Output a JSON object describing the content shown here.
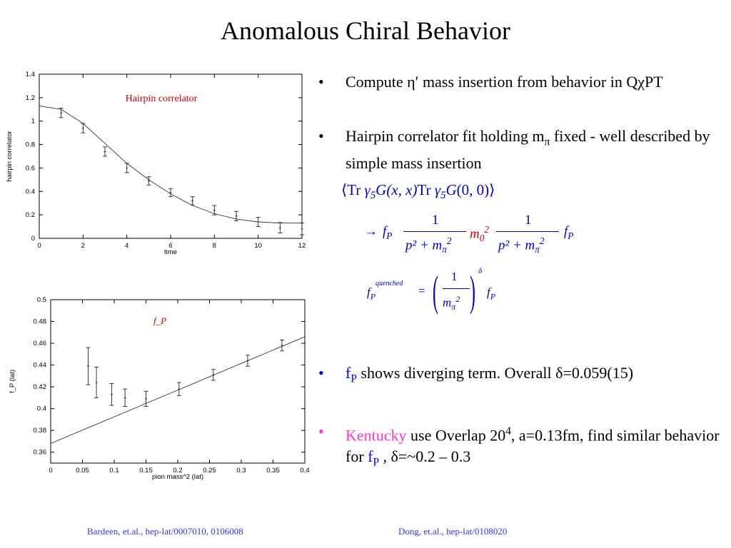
{
  "slide": {
    "title": "Anomalous Chiral Behavior",
    "bullets": [
      {
        "text_a": "Compute ",
        "eta": "η′",
        "text_b": " mass insertion from behavior in Q",
        "chi": "χ",
        "text_c": "PT"
      },
      {
        "text_a": "Hairpin correlator fit holding m",
        "sub": "π",
        "text_b": " fixed - well described by simple mass insertion"
      },
      {
        "fp": "f",
        "fp_sub": "P",
        "text_b": " shows diverging term. Overall ",
        "delta": "δ",
        "text_c": "=0.059(15)"
      },
      {
        "kentucky": "Kentucky",
        "text_b": " use Overlap 20",
        "sup": "4",
        "text_c": ", a=0.13fm, find similar behavior for ",
        "fp": "f",
        "fp_sub": "P",
        "text_d": " , ",
        "delta": "δ",
        "text_e": "=~0.2 – 0.3"
      }
    ],
    "bullet_symbol": "•",
    "equations": {
      "eq1": {
        "lang": "⟨",
        "tr1": "Tr",
        "g1": "γ",
        "g1s": "5",
        "G1": "G",
        "args1": "(x, x)",
        "tr2": "Tr",
        "g2": "γ",
        "g2s": "5",
        "G2": "G",
        "args2": "(0, 0)",
        "rang": "⟩"
      },
      "eq2": {
        "arrow": "→",
        "fp1": "f",
        "fp1s": "P",
        "num": "1",
        "den": "p² + m",
        "den_sub": "π",
        "den_sup": "2",
        "m0": "m",
        "m0s": "0",
        "m0sup": "2",
        "num2": "1",
        "fp2": "f",
        "fp2s": "P"
      },
      "eq3": {
        "fp": "f",
        "fps": "P",
        "fp_sup": "quenched",
        "eq": "=",
        "num": "1",
        "den": "m",
        "den_sub": "π",
        "den_sup": "2",
        "delta": "δ",
        "fp2": "f",
        "fp2s": "P"
      }
    },
    "footer": {
      "left": "Bardeen, et.al., hep-lat/0007010, 0106008",
      "right": "Dong, et.al., hep-lat/0108020"
    },
    "colors": {
      "link": "#3333ff",
      "equation": "#0000cc",
      "highlight": "#ff33cc",
      "chart_label": "#cc0000"
    }
  },
  "chart_data": [
    {
      "type": "scatter",
      "title": "Hairpin correlator",
      "xlabel": "time",
      "ylabel": "hairpin correlator",
      "xlim": [
        0,
        12
      ],
      "ylim": [
        0,
        1.4
      ],
      "xticks": [
        0,
        2,
        4,
        6,
        8,
        10,
        12
      ],
      "yticks": [
        0,
        0.2,
        0.4,
        0.6,
        0.8,
        1,
        1.2,
        1.4
      ],
      "points": [
        {
          "x": 1,
          "y": 1.07,
          "err": 0.04
        },
        {
          "x": 2,
          "y": 0.94,
          "err": 0.04
        },
        {
          "x": 3,
          "y": 0.74,
          "err": 0.04
        },
        {
          "x": 4,
          "y": 0.6,
          "err": 0.04
        },
        {
          "x": 5,
          "y": 0.49,
          "err": 0.035
        },
        {
          "x": 6,
          "y": 0.39,
          "err": 0.035
        },
        {
          "x": 7,
          "y": 0.32,
          "err": 0.035
        },
        {
          "x": 8,
          "y": 0.24,
          "err": 0.04
        },
        {
          "x": 9,
          "y": 0.19,
          "err": 0.04
        },
        {
          "x": 10,
          "y": 0.14,
          "err": 0.04
        },
        {
          "x": 11,
          "y": 0.09,
          "err": 0.045
        },
        {
          "x": 12,
          "y": 0.08,
          "err": 0.05
        }
      ],
      "fit": [
        {
          "x": 0,
          "y": 1.13
        },
        {
          "x": 1,
          "y": 1.1
        },
        {
          "x": 2,
          "y": 0.98
        },
        {
          "x": 3,
          "y": 0.81
        },
        {
          "x": 4,
          "y": 0.64
        },
        {
          "x": 5,
          "y": 0.5
        },
        {
          "x": 6,
          "y": 0.38
        },
        {
          "x": 7,
          "y": 0.28
        },
        {
          "x": 8,
          "y": 0.21
        },
        {
          "x": 9,
          "y": 0.165
        },
        {
          "x": 10,
          "y": 0.14
        },
        {
          "x": 11,
          "y": 0.13
        },
        {
          "x": 12,
          "y": 0.13
        }
      ]
    },
    {
      "type": "scatter",
      "title": "f_P",
      "xlabel": "pion mass^2 (lat)",
      "ylabel": "f_P (lat)",
      "xlim": [
        0,
        0.4
      ],
      "ylim": [
        0.35,
        0.5
      ],
      "xticks": [
        0,
        0.05,
        0.1,
        0.15,
        0.2,
        0.25,
        0.3,
        0.35,
        0.4
      ],
      "yticks": [
        0.36,
        0.38,
        0.4,
        0.42,
        0.44,
        0.46,
        0.48,
        0.5
      ],
      "points": [
        {
          "x": 0.059,
          "y": 0.439,
          "err": 0.017
        },
        {
          "x": 0.072,
          "y": 0.424,
          "err": 0.014
        },
        {
          "x": 0.096,
          "y": 0.413,
          "err": 0.01
        },
        {
          "x": 0.117,
          "y": 0.41,
          "err": 0.008
        },
        {
          "x": 0.15,
          "y": 0.409,
          "err": 0.007
        },
        {
          "x": 0.202,
          "y": 0.418,
          "err": 0.006
        },
        {
          "x": 0.256,
          "y": 0.431,
          "err": 0.005
        },
        {
          "x": 0.31,
          "y": 0.444,
          "err": 0.005
        },
        {
          "x": 0.364,
          "y": 0.458,
          "err": 0.005
        }
      ],
      "fit": [
        {
          "x": 0,
          "y": 0.368
        },
        {
          "x": 0.4,
          "y": 0.466
        }
      ]
    }
  ]
}
